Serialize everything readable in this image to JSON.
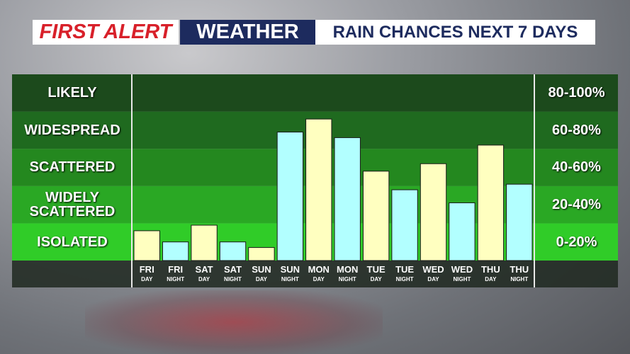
{
  "chart_data": {
    "type": "bar",
    "title": "FIRST ALERT",
    "subtitle": "WEATHER",
    "heading": "RAIN CHANCES NEXT 7 DAYS",
    "bands": [
      {
        "label": "LIKELY",
        "range": "80-100%",
        "color": "#1c4a1c"
      },
      {
        "label": "WIDESPREAD",
        "range": "60-80%",
        "color": "#1f6a1f"
      },
      {
        "label": "SCATTERED",
        "range": "40-60%",
        "color": "#24881f"
      },
      {
        "label": "WIDELY SCATTERED",
        "range": "20-40%",
        "color": "#2aa824"
      },
      {
        "label": "ISOLATED",
        "range": "0-20%",
        "color": "#30cc28"
      }
    ],
    "categories": [
      "FRI",
      "FRI",
      "SAT",
      "SAT",
      "SUN",
      "SUN",
      "MON",
      "MON",
      "TUE",
      "TUE",
      "WED",
      "WED",
      "THU",
      "THU"
    ],
    "periods": [
      "DAY",
      "NIGHT",
      "DAY",
      "NIGHT",
      "DAY",
      "NIGHT",
      "DAY",
      "NIGHT",
      "DAY",
      "NIGHT",
      "DAY",
      "NIGHT",
      "DAY",
      "NIGHT"
    ],
    "values": [
      16,
      10,
      19,
      10,
      7,
      69,
      76,
      66,
      48,
      38,
      52,
      31,
      62,
      41
    ],
    "colors": [
      "#ffffc0",
      "#b2ffff",
      "#ffffc0",
      "#b2ffff",
      "#ffffc0",
      "#b2ffff",
      "#ffffc0",
      "#b2ffff",
      "#ffffc0",
      "#b2ffff",
      "#ffffc0",
      "#b2ffff",
      "#ffffc0",
      "#b2ffff"
    ],
    "ylim": [
      0,
      100
    ]
  }
}
